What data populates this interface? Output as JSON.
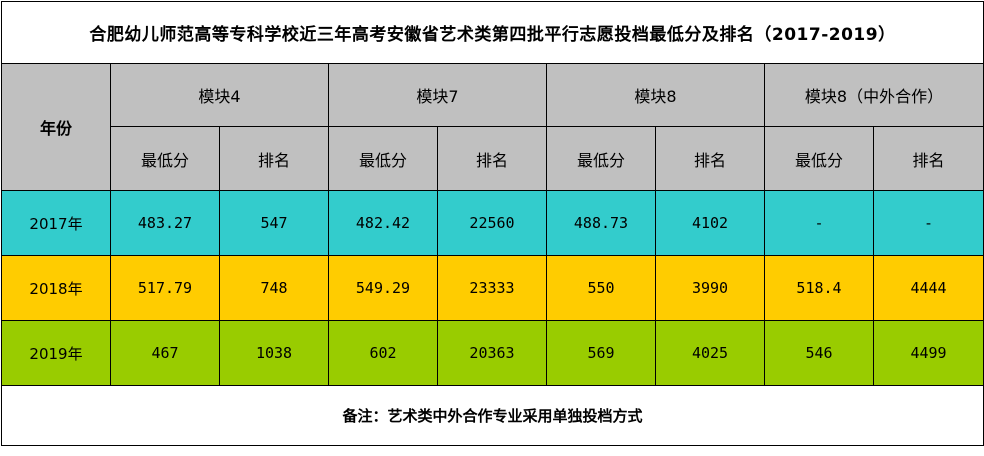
{
  "title": "合肥幼儿师范高等专科学校近三年高考安徽省艺术类第四批平行志愿投档最低分及排名（2017-2019）",
  "header": {
    "year_label": "年份",
    "groups": [
      "模块4",
      "模块7",
      "模块8",
      "模块8（中外合作）"
    ],
    "sub_labels": [
      "最低分",
      "排名"
    ]
  },
  "rows": [
    {
      "year": "2017年",
      "bg": "#33cccc",
      "values": [
        "483.27",
        "547",
        "482.42",
        "22560",
        "488.73",
        "4102",
        "-",
        "-"
      ]
    },
    {
      "year": "2018年",
      "bg": "#ffcc00",
      "values": [
        "517.79",
        "748",
        "549.29",
        "23333",
        "550",
        "3990",
        "518.4",
        "4444"
      ]
    },
    {
      "year": "2019年",
      "bg": "#99cc00",
      "values": [
        "467",
        "1038",
        "602",
        "20363",
        "569",
        "4025",
        "546",
        "4499"
      ]
    }
  ],
  "note": "备注：艺术类中外合作专业采用单独投档方式",
  "colors": {
    "header_bg": "#c0c0c0",
    "border": "#000000"
  }
}
